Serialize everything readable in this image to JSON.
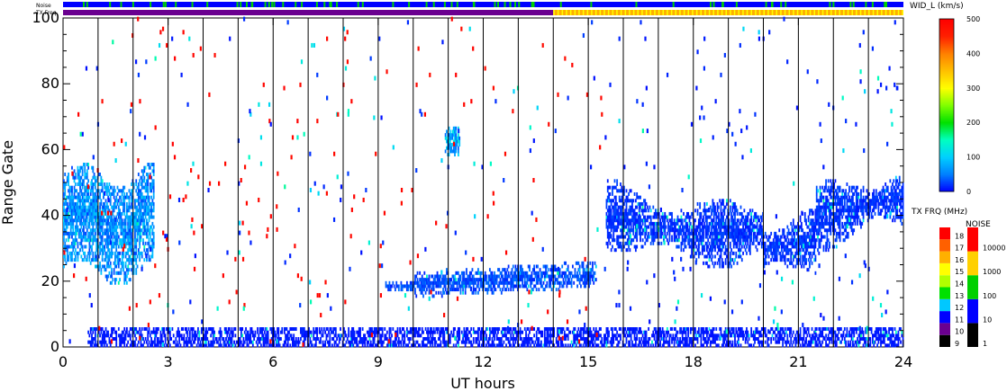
{
  "chart_data": {
    "type": "heatmap",
    "title": "",
    "xlabel": "UT hours",
    "ylabel": "Range Gate",
    "xlim": [
      0,
      24
    ],
    "ylim": [
      0,
      100
    ],
    "x_ticks": [
      "0",
      "3",
      "6",
      "9",
      "12",
      "15",
      "18",
      "21",
      "24"
    ],
    "x_tick_values": [
      0,
      3,
      6,
      9,
      12,
      15,
      18,
      21,
      24
    ],
    "y_ticks": [
      "0",
      "20",
      "40",
      "60",
      "80",
      "100"
    ],
    "y_tick_values": [
      0,
      20,
      40,
      60,
      80,
      100
    ],
    "scan_boundaries_ut": [
      1,
      2,
      3,
      4,
      5,
      6,
      7,
      8,
      9,
      10,
      11,
      12,
      13,
      14,
      15,
      16,
      17,
      18,
      19,
      20,
      21,
      22,
      23
    ],
    "grid": false,
    "parameter_colorbar": {
      "label": "WID_L (km/s)",
      "range": [
        0,
        500
      ],
      "ticks": [
        "0",
        "100",
        "200",
        "300",
        "400",
        "500"
      ],
      "tick_values": [
        0,
        100,
        200,
        300,
        400,
        500
      ],
      "colors": [
        "#0000ff",
        "#0080ff",
        "#00d0ff",
        "#00ffc0",
        "#00e000",
        "#80ff00",
        "#ffff00",
        "#ffc000",
        "#ff8000",
        "#ff2000",
        "#ff0000"
      ]
    },
    "txfreq_colorbar": {
      "label": "TX FRQ (MHz)",
      "ticks": [
        "9",
        "10",
        "11",
        "12",
        "13",
        "14",
        "15",
        "16",
        "17",
        "18"
      ],
      "colors": [
        "#000000",
        "#6a0090",
        "#0000ff",
        "#00c8ff",
        "#00e000",
        "#b0ff00",
        "#ffff00",
        "#ffb000",
        "#ff6000",
        "#ff0000"
      ]
    },
    "noise_colorbar": {
      "label": "NOISE",
      "ticks": [
        "1",
        "10",
        "100",
        "1000",
        "10000"
      ],
      "colors": [
        "#000000",
        "#0000ff",
        "#00d000",
        "#ffd000",
        "#ff0000"
      ]
    },
    "status_bars": [
      {
        "label": "Noise",
        "segments": [
          {
            "from": 0,
            "to": 24,
            "level": "10"
          }
        ],
        "dots_level": "100"
      },
      {
        "label": "TX Freq",
        "segments": [
          {
            "from": 0,
            "to": 14,
            "color": "#6a0090"
          },
          {
            "from": 14,
            "to": 24,
            "color": "#ffb000"
          }
        ]
      }
    ],
    "regions": [
      {
        "name": "near-range ground echoes",
        "ut": [
          0.7,
          24
        ],
        "gate": [
          0,
          5
        ],
        "velocity_kms": 10
      },
      {
        "name": "early echoes",
        "ut": [
          0,
          2.6
        ],
        "gate": [
          18,
          58
        ],
        "velocity_kms": 60
      },
      {
        "name": "patch",
        "ut": [
          10.9,
          11.3
        ],
        "gate": [
          58,
          66
        ],
        "velocity_kms": 80
      },
      {
        "name": "gate 20 band",
        "ut": [
          9.2,
          15.2
        ],
        "gate": [
          15,
          26
        ],
        "velocity_kms": 30
      },
      {
        "name": "afternoon echoes",
        "ut": [
          15.5,
          24
        ],
        "gate": [
          22,
          53
        ],
        "velocity_kms": 20
      }
    ]
  }
}
